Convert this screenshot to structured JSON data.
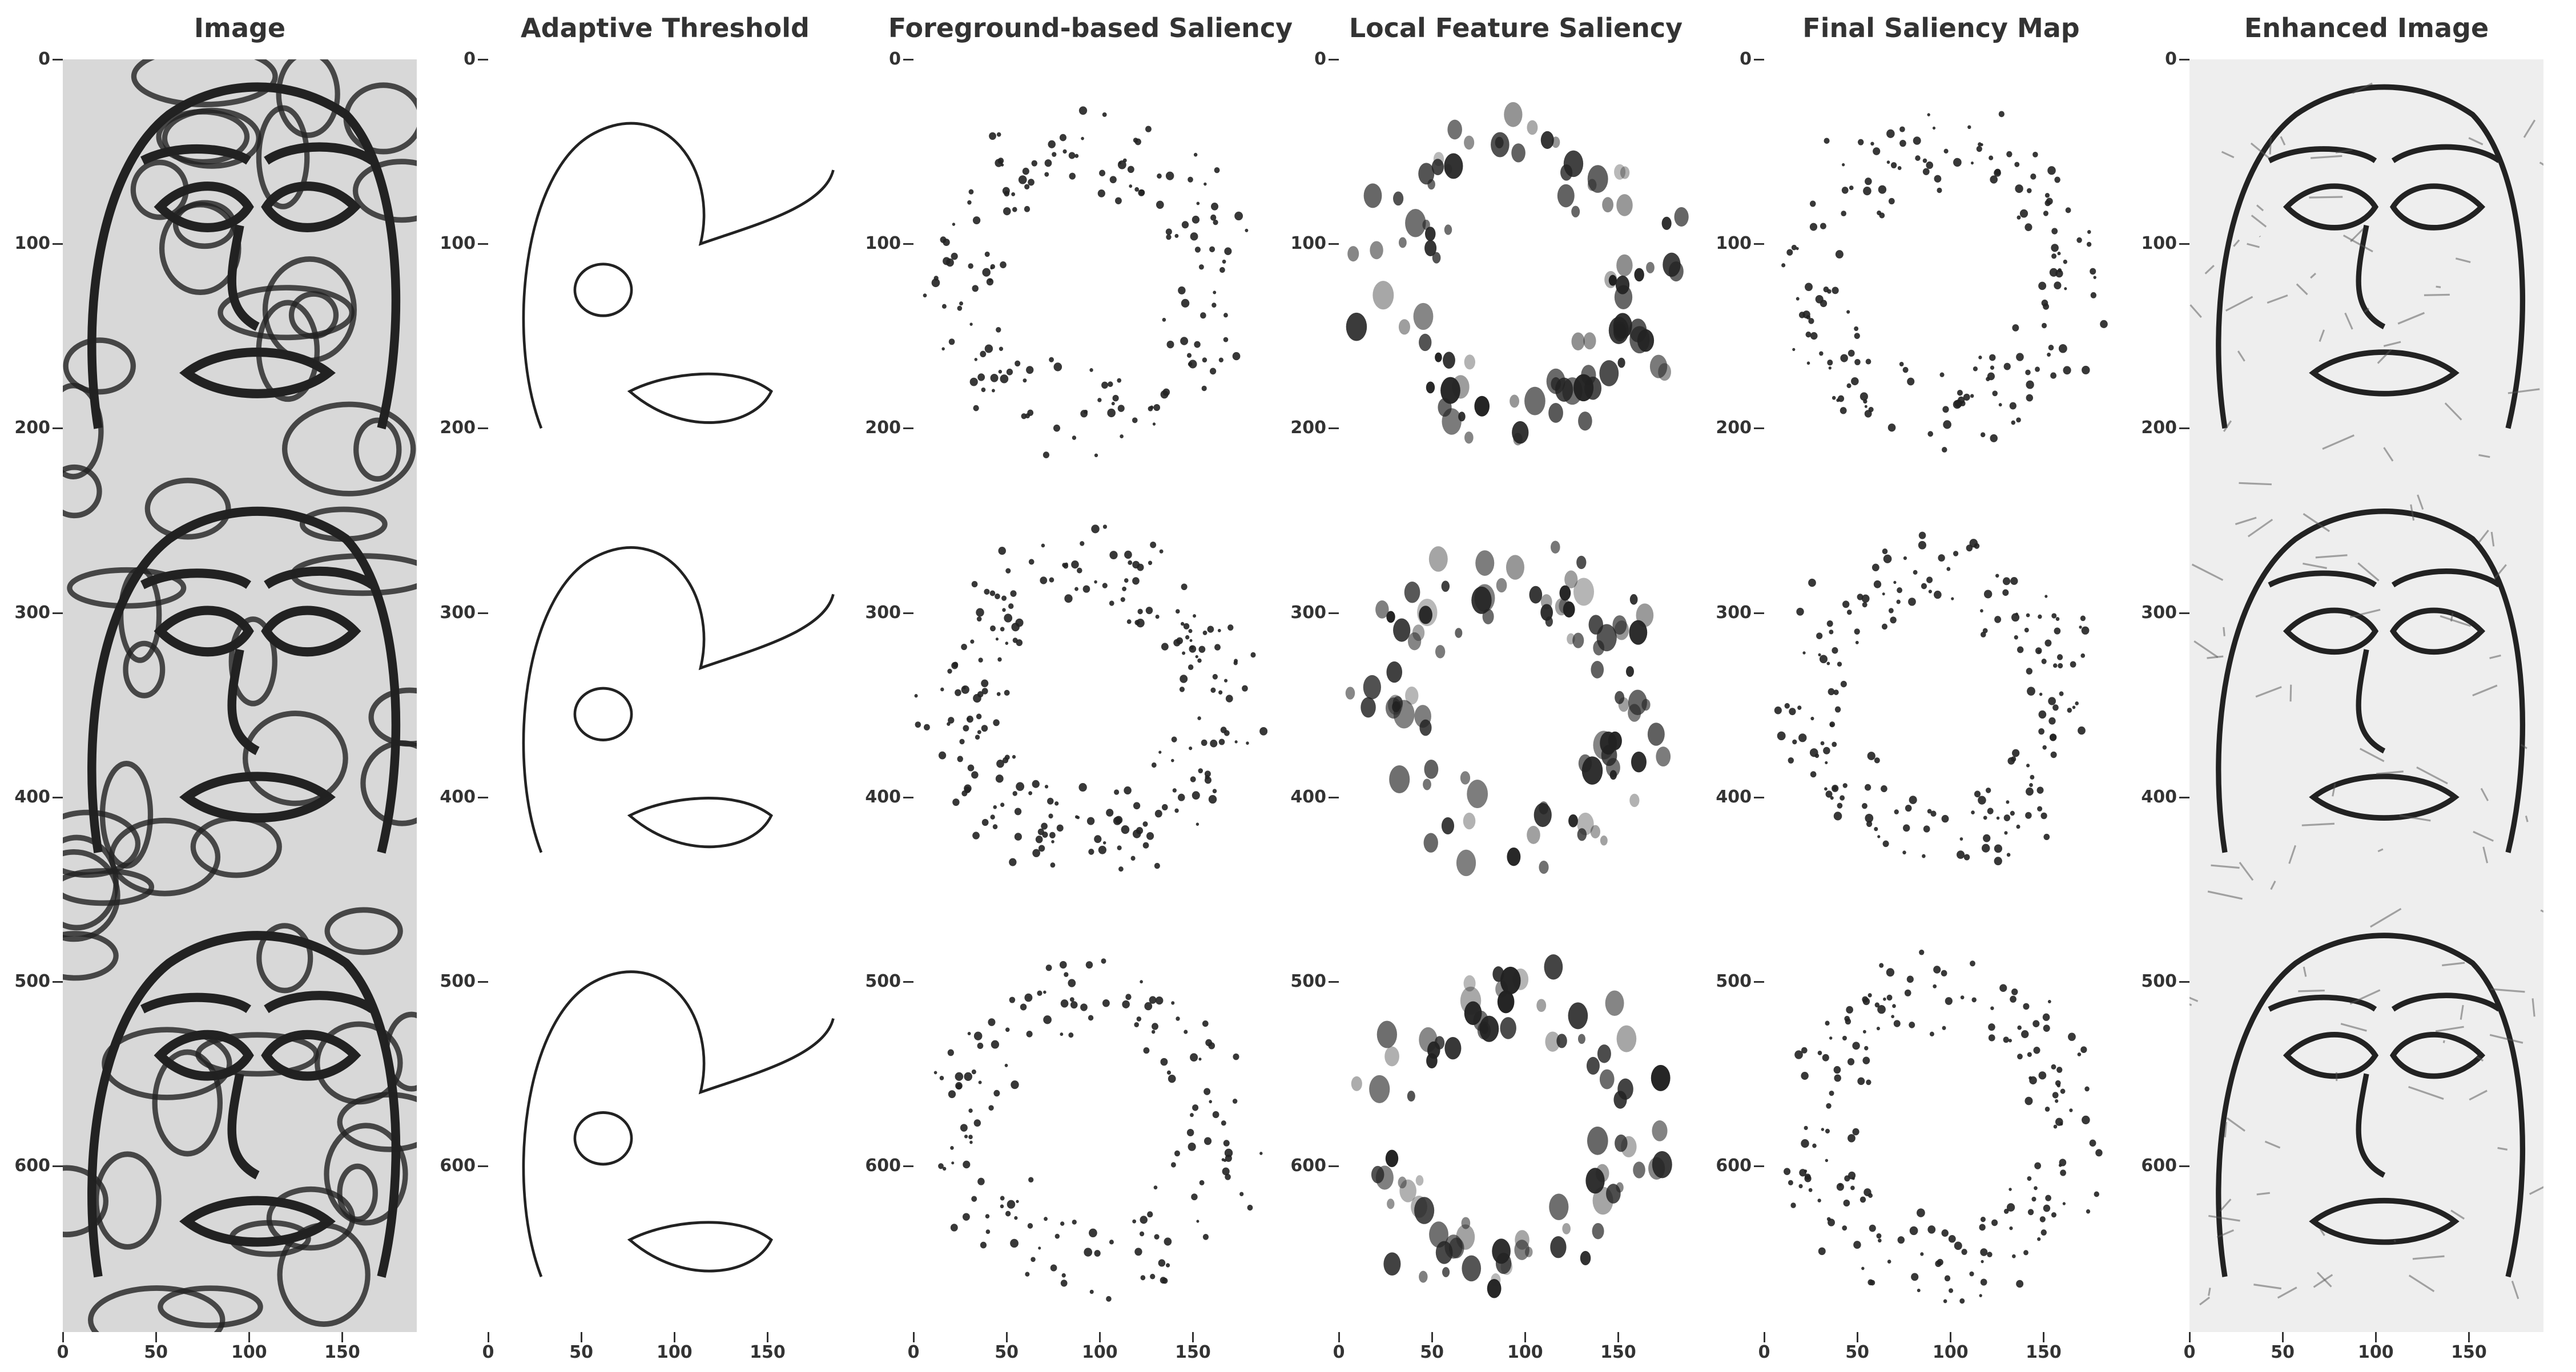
{
  "panels": [
    {
      "title": "Image",
      "kind": "image"
    },
    {
      "title": "Adaptive Threshold",
      "kind": "threshold"
    },
    {
      "title": "Foreground-based Saliency",
      "kind": "dots"
    },
    {
      "title": "Local Feature Saliency",
      "kind": "blobs"
    },
    {
      "title": "Final Saliency Map",
      "kind": "dots2"
    },
    {
      "title": "Enhanced Image",
      "kind": "enhanced"
    }
  ],
  "axes": {
    "yticks": [
      "0",
      "100",
      "200",
      "300",
      "400",
      "500",
      "600"
    ],
    "xticks": [
      "0",
      "50",
      "100",
      "150"
    ]
  },
  "colors": {
    "ink": "#222222",
    "label": "#333333"
  }
}
